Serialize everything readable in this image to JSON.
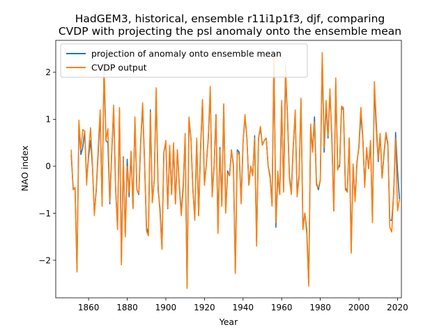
{
  "chart_data": {
    "type": "line",
    "title_lines": [
      "HadGEM3, historical, ensemble r11i1p1f3, djf, comparing",
      "CVDP with projecting the psl anomaly onto the ensemble mean"
    ],
    "xlabel": "Year",
    "ylabel": "NAO index",
    "xlim": [
      1843,
      2022
    ],
    "ylim": [
      -2.8,
      2.68
    ],
    "xticks": [
      1860,
      1880,
      1900,
      1920,
      1940,
      1960,
      1980,
      2000,
      2020
    ],
    "yticks": [
      -2,
      -1,
      0,
      1,
      2
    ],
    "ytick_labels": [
      "−2",
      "−1",
      "0",
      "1",
      "2"
    ],
    "grid": false,
    "legend_position": "top-left",
    "x_start": 1851,
    "x_end": 2014,
    "series": [
      {
        "name": "projection of anomaly onto ensemble mean",
        "color": "#1f77b4",
        "values": [
          0.25,
          -0.45,
          -0.5,
          -2.2,
          0.9,
          0.25,
          0.4,
          0.75,
          -0.3,
          0.2,
          0.55,
          0.0,
          -1.0,
          -0.5,
          0.3,
          1.1,
          -0.8,
          2.05,
          0.55,
          0.5,
          -0.8,
          0.3,
          1.2,
          -0.5,
          -1.3,
          1.2,
          -2.05,
          0.2,
          -1.45,
          0.15,
          -0.65,
          0.3,
          -0.9,
          1.0,
          -0.5,
          -0.6,
          0.5,
          1.3,
          0.05,
          -1.3,
          -1.45,
          1.2,
          -0.75,
          -0.3,
          1.6,
          -0.5,
          -0.9,
          -1.75,
          0.3,
          0.5,
          -0.9,
          0.4,
          -0.6,
          0.45,
          -0.8,
          0.35,
          -0.4,
          -1.0,
          -0.4,
          0.6,
          -2.55,
          1.0,
          0.6,
          -0.5,
          -1.1,
          0.55,
          -1.05,
          0.4,
          1.4,
          -0.4,
          0.05,
          0.6,
          1.6,
          -0.6,
          0.0,
          1.1,
          -1.35,
          0.4,
          -0.8,
          1.3,
          -0.95,
          -0.1,
          -0.2,
          0.35,
          0.0,
          -2.25,
          0.35,
          0.3,
          -0.75,
          0.5,
          1.05,
          0.6,
          -0.4,
          0.0,
          -0.2,
          0.65,
          -1.6,
          0.6,
          0.8,
          0.45,
          0.55,
          0.6,
          0.0,
          -0.2,
          -0.8,
          2.3,
          -1.3,
          -0.2,
          -0.6,
          1.3,
          -0.5,
          1.85,
          1.1,
          -0.2,
          -0.55,
          0.45,
          1.1,
          -0.6,
          -0.2,
          1.4,
          -1.3,
          -1.0,
          -1.35,
          -2.5,
          0.8,
          0.35,
          1.05,
          -0.35,
          -0.5,
          -0.3,
          2.3,
          0.3,
          1.3,
          0.6,
          1.6,
          0.6,
          -0.95,
          1.8,
          -0.05,
          0.0,
          1.25,
          1.2,
          -0.45,
          -0.55,
          0.6,
          -1.8,
          0.0,
          -0.7,
          0.1,
          0.4,
          1.1,
          0.6,
          -0.4,
          0.35,
          -0.05,
          0.5,
          -1.15,
          1.65,
          0.8,
          0.1,
          0.65,
          -0.25,
          0.25,
          0.7,
          0.45,
          -1.15,
          -1.15,
          -0.6,
          0.72,
          -0.1,
          -0.7
        ]
      },
      {
        "name": "CVDP output",
        "color": "#ff7f0e",
        "values": [
          0.35,
          -0.5,
          -0.45,
          -2.25,
          0.98,
          0.35,
          0.78,
          0.75,
          -0.4,
          0.3,
          0.82,
          0.05,
          -1.05,
          -0.45,
          0.4,
          1.2,
          -0.85,
          2.2,
          0.55,
          0.8,
          -0.75,
          0.35,
          1.3,
          -0.45,
          -1.35,
          1.25,
          -2.1,
          0.18,
          -1.5,
          0.0,
          -0.55,
          0.32,
          -0.9,
          1.05,
          -0.5,
          -0.58,
          0.55,
          1.35,
          0.1,
          -1.38,
          -1.48,
          1.15,
          -0.78,
          -0.3,
          1.67,
          -0.4,
          -1.0,
          -1.77,
          0.3,
          0.55,
          -0.88,
          0.45,
          -0.6,
          0.5,
          -0.8,
          0.35,
          -0.45,
          -1.05,
          -0.5,
          0.7,
          -2.6,
          1.05,
          0.6,
          -0.45,
          -1.15,
          0.6,
          -1.05,
          0.35,
          1.42,
          -0.4,
          0.05,
          0.6,
          1.7,
          -0.65,
          0.0,
          1.1,
          -1.43,
          0.35,
          -0.85,
          1.33,
          -1.0,
          -0.15,
          -0.2,
          0.35,
          0.05,
          -2.28,
          0.3,
          0.25,
          -0.8,
          0.5,
          1.1,
          0.6,
          -0.4,
          0.0,
          -0.2,
          0.6,
          -1.7,
          0.6,
          0.85,
          0.45,
          0.55,
          0.6,
          0.0,
          -0.25,
          -0.85,
          2.38,
          -1.2,
          -0.1,
          -0.6,
          1.4,
          -0.55,
          2.15,
          1.05,
          -0.25,
          -0.6,
          0.4,
          1.2,
          -0.65,
          -0.25,
          1.45,
          -1.35,
          -1.0,
          -1.45,
          -2.55,
          0.9,
          0.3,
          0.95,
          -0.4,
          -0.45,
          -0.3,
          2.42,
          0.4,
          1.4,
          0.65,
          1.65,
          0.5,
          -0.95,
          1.88,
          -0.08,
          0.05,
          1.28,
          1.25,
          -0.5,
          -0.55,
          0.6,
          -1.85,
          0.05,
          -0.75,
          0.05,
          0.45,
          1.25,
          0.65,
          -0.45,
          0.4,
          -0.05,
          0.55,
          -1.2,
          1.8,
          0.95,
          0.15,
          0.7,
          -0.25,
          0.3,
          0.72,
          0.5,
          -1.3,
          -1.4,
          -0.55,
          0.6,
          -0.95,
          -0.7
        ]
      }
    ]
  }
}
